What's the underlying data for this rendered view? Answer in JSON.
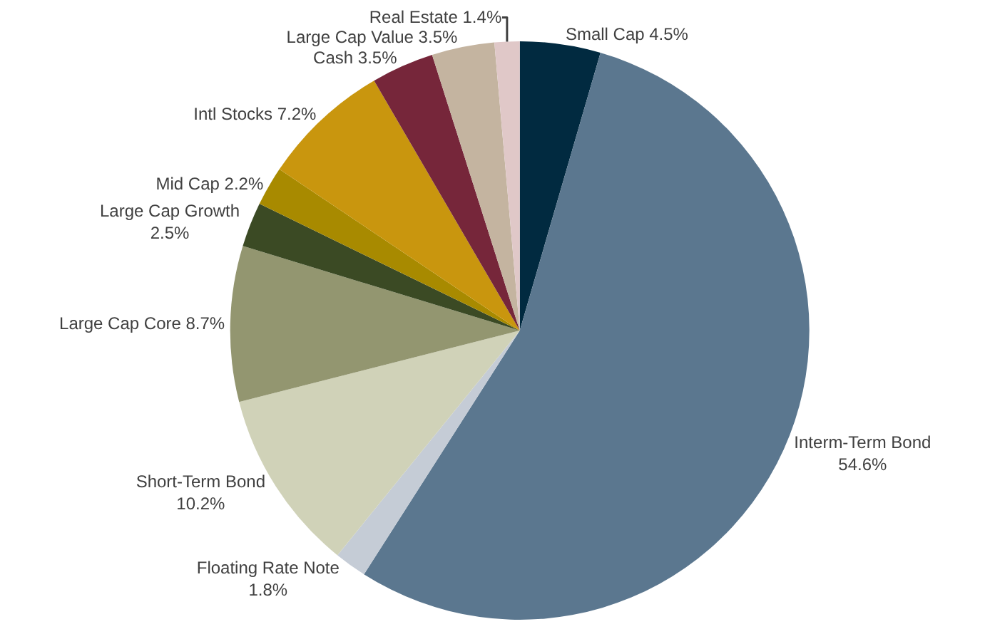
{
  "chart_data": {
    "type": "pie",
    "categories": [
      "Small Cap",
      "Interm-Term Bond",
      "Floating Rate Note",
      "Short-Term Bond",
      "Large Cap Core",
      "Large Cap Growth",
      "Mid Cap",
      "Intl Stocks",
      "Cash",
      "Large Cap Value",
      "Real Estate"
    ],
    "values": [
      4.5,
      54.6,
      1.8,
      10.2,
      8.7,
      2.5,
      2.2,
      7.2,
      3.5,
      3.5,
      1.4
    ],
    "value_labels": [
      "4.5%",
      "54.6%",
      "1.8%",
      "10.2%",
      "8.7%",
      "2.5%",
      "2.2%",
      "7.2%",
      "3.5%",
      "3.5%",
      "1.4%"
    ],
    "colors": [
      "#012a40",
      "#5b778f",
      "#c5ccd6",
      "#d0d2b8",
      "#939670",
      "#3b4a24",
      "#a88a00",
      "#c9960e",
      "#76263a",
      "#c4b4a0",
      "#e0c8c8"
    ],
    "legend": false
  }
}
